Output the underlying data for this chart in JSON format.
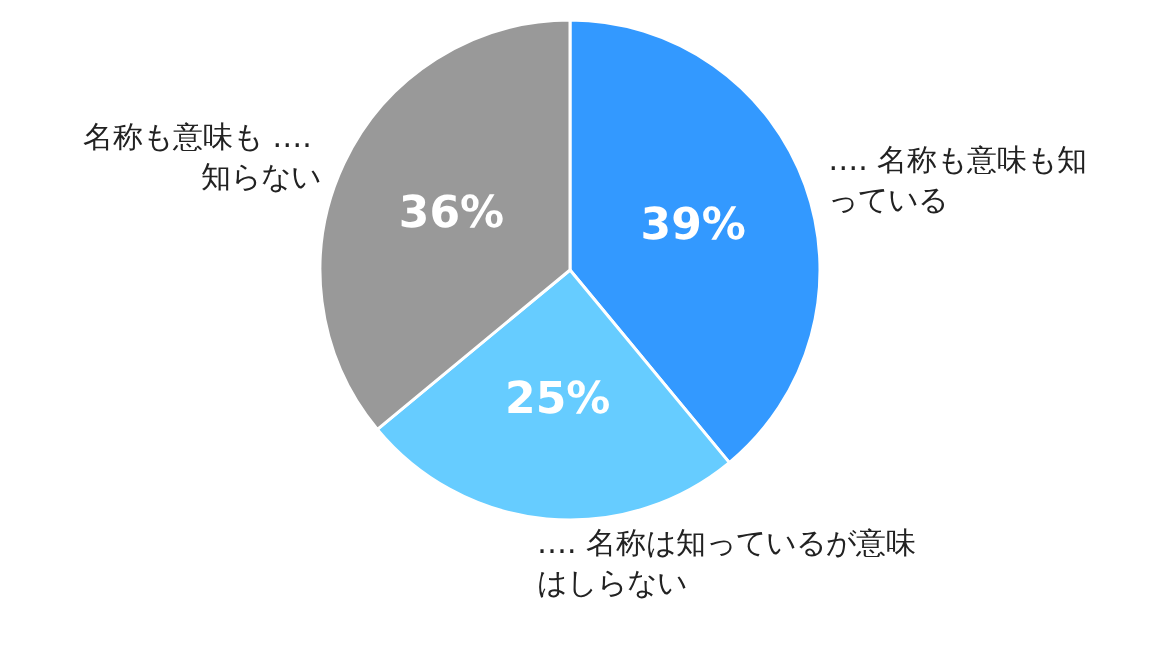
{
  "chart_data": {
    "type": "pie",
    "categories": [
      "…. 名称も意味も知っている",
      "…. 名称は知っているが意味はしらない",
      "名称も意味も …. 知らない"
    ],
    "values": [
      39,
      25,
      36
    ],
    "colors": [
      "#3399ff",
      "#66ccff",
      "#999999"
    ],
    "value_labels": [
      "39%",
      "25%",
      "36%"
    ],
    "legend": false
  }
}
